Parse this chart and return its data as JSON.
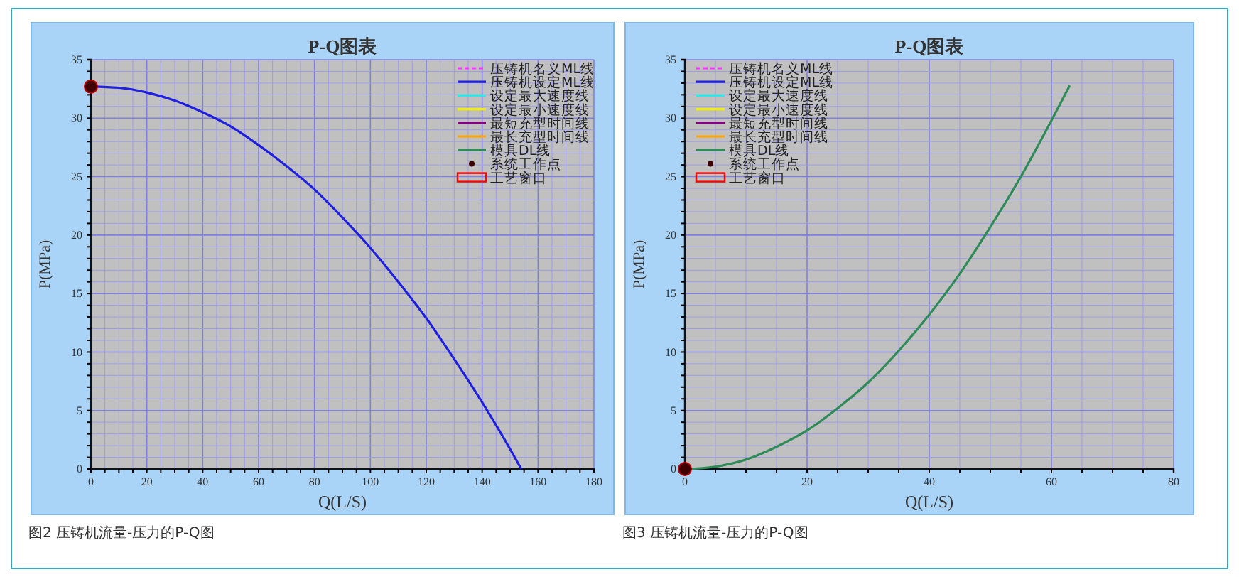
{
  "chart_data": [
    {
      "type": "line",
      "title": "P-Q图表",
      "xlabel": "Q(L/S)",
      "ylabel": "P(MPa)",
      "xlim": [
        0,
        180
      ],
      "xticks": [
        0,
        {
          "value": 5,
          "label": null
        },
        {
          "value": 10,
          "label": null
        },
        {
          "value": 15,
          "label": null
        },
        20,
        {
          "value": 25,
          "label": null
        },
        {
          "value": 30,
          "label": null
        },
        {
          "value": 35,
          "label": null
        },
        40,
        {
          "value": 45,
          "label": null
        },
        {
          "value": 50,
          "label": null
        },
        {
          "value": 55,
          "label": null
        },
        60,
        {
          "value": 65,
          "label": null
        },
        {
          "value": 70,
          "label": null
        },
        {
          "value": 75,
          "label": null
        },
        80,
        {
          "value": 85,
          "label": null
        },
        {
          "value": 90,
          "label": null
        },
        {
          "value": 95,
          "label": null
        },
        100,
        {
          "value": 105,
          "label": null
        },
        {
          "value": 110,
          "label": null
        },
        {
          "value": 115,
          "label": null
        },
        120,
        {
          "value": 125,
          "label": null
        },
        {
          "value": 130,
          "label": null
        },
        {
          "value": 135,
          "label": null
        },
        140,
        {
          "value": 145,
          "label": null
        },
        {
          "value": 150,
          "label": null
        },
        {
          "value": 155,
          "label": null
        },
        160,
        {
          "value": 165,
          "label": null
        },
        {
          "value": 170,
          "label": null
        },
        {
          "value": 175,
          "label": null
        },
        180
      ],
      "ylim": [
        0,
        35
      ],
      "yticks": [
        0,
        {
          "value": 1,
          "label": null
        },
        {
          "value": 2,
          "label": null
        },
        {
          "value": 3,
          "label": null
        },
        {
          "value": 4,
          "label": null
        },
        5,
        {
          "value": 6,
          "label": null
        },
        {
          "value": 7,
          "label": null
        },
        {
          "value": 8,
          "label": null
        },
        {
          "value": 9,
          "label": null
        },
        10,
        {
          "value": 11,
          "label": null
        },
        {
          "value": 12,
          "label": null
        },
        {
          "value": 13,
          "label": null
        },
        {
          "value": 14,
          "label": null
        },
        15,
        {
          "value": 16,
          "label": null
        },
        {
          "value": 17,
          "label": null
        },
        {
          "value": 18,
          "label": null
        },
        {
          "value": 19,
          "label": null
        },
        20,
        {
          "value": 21,
          "label": null
        },
        {
          "value": 22,
          "label": null
        },
        {
          "value": 23,
          "label": null
        },
        {
          "value": 24,
          "label": null
        },
        25,
        {
          "value": 26,
          "label": null
        },
        {
          "value": 27,
          "label": null
        },
        {
          "value": 28,
          "label": null
        },
        {
          "value": 29,
          "label": null
        },
        30,
        {
          "value": 31,
          "label": null
        },
        {
          "value": 32,
          "label": null
        },
        {
          "value": 33,
          "label": null
        },
        {
          "value": 34,
          "label": null
        },
        35
      ],
      "grid": true,
      "legend": "top right",
      "annotations": [
        "图2 压铸机流量-压力的P-Q图"
      ],
      "series": [
        {
          "name": "压铸机名义ML线",
          "color": "#ff33ff",
          "line_style": "dashed"
        },
        {
          "name": "压铸机设定ML线",
          "color": "#1f1fe0",
          "x": [
            0,
            10,
            20,
            30,
            40,
            50,
            60,
            70,
            80,
            90,
            100,
            110,
            120,
            130,
            140,
            150,
            154
          ],
          "values": [
            32.7,
            32.6,
            32.2,
            31.5,
            30.5,
            29.3,
            27.7,
            25.9,
            23.9,
            21.5,
            18.9,
            16.0,
            12.9,
            9.4,
            5.7,
            1.7,
            0
          ]
        },
        {
          "name": "设定最大速度线",
          "color": "#33e6e6"
        },
        {
          "name": "设定最小速度线",
          "color": "#f0f000"
        },
        {
          "name": "最短充型时间线",
          "color": "#800080"
        },
        {
          "name": "最长充型时间线",
          "color": "#ffa500"
        },
        {
          "name": "模具DL线",
          "color": "#2e8b57"
        },
        {
          "name": "系统工作点",
          "type": "scatter",
          "marker": "circle",
          "color": "#400000",
          "x": [
            0
          ],
          "values": [
            32.7
          ]
        },
        {
          "name": "工艺窗口",
          "type": "area",
          "color": "#ff0000"
        }
      ]
    },
    {
      "type": "line",
      "title": "P-Q图表",
      "xlabel": "Q(L/S)",
      "ylabel": "P(MPa)",
      "xlim": [
        0,
        80
      ],
      "xticks": [
        0,
        {
          "value": 5,
          "label": null
        },
        {
          "value": 10,
          "label": null
        },
        {
          "value": 15,
          "label": null
        },
        20,
        {
          "value": 25,
          "label": null
        },
        {
          "value": 30,
          "label": null
        },
        {
          "value": 35,
          "label": null
        },
        40,
        {
          "value": 45,
          "label": null
        },
        {
          "value": 50,
          "label": null
        },
        {
          "value": 55,
          "label": null
        },
        60,
        {
          "value": 65,
          "label": null
        },
        {
          "value": 70,
          "label": null
        },
        {
          "value": 75,
          "label": null
        },
        80
      ],
      "ylim": [
        0,
        35
      ],
      "yticks": [
        0,
        {
          "value": 1,
          "label": null
        },
        {
          "value": 2,
          "label": null
        },
        {
          "value": 3,
          "label": null
        },
        {
          "value": 4,
          "label": null
        },
        5,
        {
          "value": 6,
          "label": null
        },
        {
          "value": 7,
          "label": null
        },
        {
          "value": 8,
          "label": null
        },
        {
          "value": 9,
          "label": null
        },
        10,
        {
          "value": 11,
          "label": null
        },
        {
          "value": 12,
          "label": null
        },
        {
          "value": 13,
          "label": null
        },
        {
          "value": 14,
          "label": null
        },
        15,
        {
          "value": 16,
          "label": null
        },
        {
          "value": 17,
          "label": null
        },
        {
          "value": 18,
          "label": null
        },
        {
          "value": 19,
          "label": null
        },
        20,
        {
          "value": 21,
          "label": null
        },
        {
          "value": 22,
          "label": null
        },
        {
          "value": 23,
          "label": null
        },
        {
          "value": 24,
          "label": null
        },
        25,
        {
          "value": 26,
          "label": null
        },
        {
          "value": 27,
          "label": null
        },
        {
          "value": 28,
          "label": null
        },
        {
          "value": 29,
          "label": null
        },
        30,
        {
          "value": 31,
          "label": null
        },
        {
          "value": 32,
          "label": null
        },
        {
          "value": 33,
          "label": null
        },
        {
          "value": 34,
          "label": null
        },
        35
      ],
      "grid": true,
      "legend": "top left",
      "annotations": [
        "图3 压铸机流量-压力的P-Q图"
      ],
      "series": [
        {
          "name": "压铸机名义ML线",
          "color": "#ff33ff",
          "line_style": "dashed"
        },
        {
          "name": "压铸机设定ML线",
          "color": "#1f1fe0"
        },
        {
          "name": "设定最大速度线",
          "color": "#33e6e6"
        },
        {
          "name": "设定最小速度线",
          "color": "#f0f000"
        },
        {
          "name": "最短充型时间线",
          "color": "#800080"
        },
        {
          "name": "最长充型时间线",
          "color": "#ffa500"
        },
        {
          "name": "模具DL线",
          "color": "#2e8b57",
          "x": [
            0,
            5,
            10,
            15,
            20,
            25,
            30,
            35,
            40,
            45,
            50,
            55,
            60,
            63
          ],
          "values": [
            0,
            0.2,
            0.8,
            1.9,
            3.3,
            5.2,
            7.4,
            10.1,
            13.2,
            16.7,
            20.7,
            25.0,
            29.8,
            32.8
          ]
        },
        {
          "name": "系统工作点",
          "type": "scatter",
          "marker": "circle",
          "color": "#400000",
          "x": [
            0
          ],
          "values": [
            0
          ]
        },
        {
          "name": "工艺窗口",
          "type": "area",
          "color": "#ff0000"
        }
      ]
    }
  ]
}
